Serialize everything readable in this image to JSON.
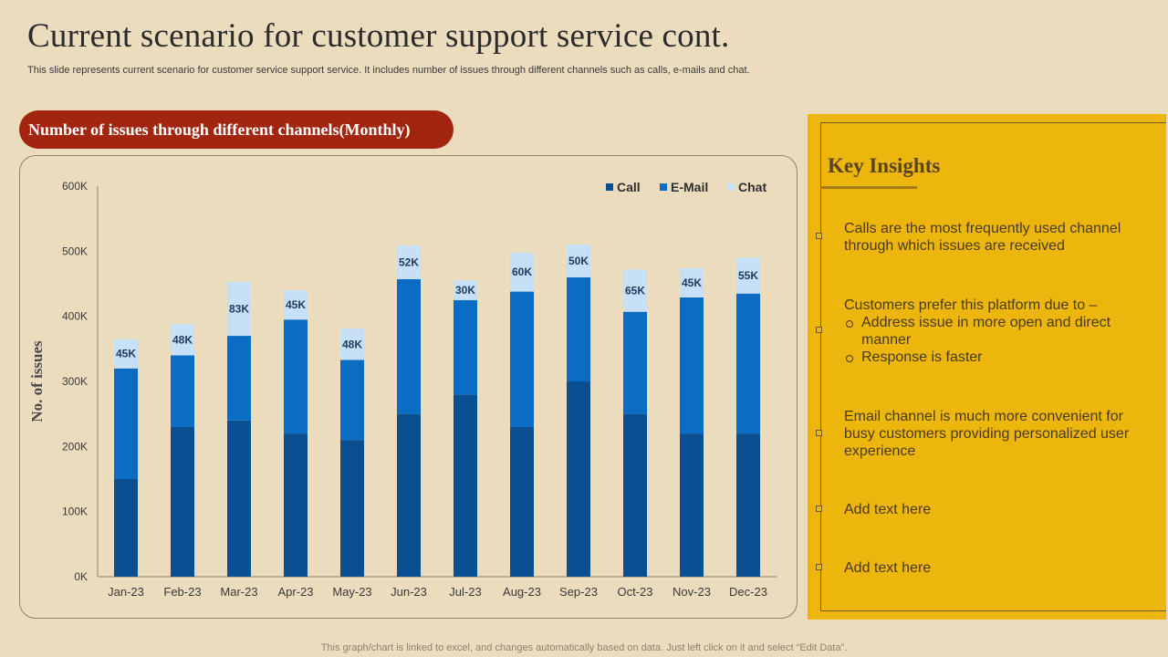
{
  "slide": {
    "title": "Current scenario for customer support service cont.",
    "subtitle": "This slide represents current scenario for customer service support service. It includes number of issues through different channels such as calls, e-mails and chat.",
    "footer": "This graph/chart is linked to excel,  and changes automatically based on data. Just left click on it and select “Edit Data”."
  },
  "chart_banner": "Number of issues through different channels(Monthly)",
  "chart_data": {
    "type": "bar",
    "stacked": true,
    "title": "Number of issues through different channels(Monthly)",
    "xlabel": "",
    "ylabel": "No. of issues",
    "ylim": [
      0,
      600000
    ],
    "yticks": [
      0,
      100000,
      200000,
      300000,
      400000,
      500000,
      600000
    ],
    "ytick_labels": [
      "0K",
      "100K",
      "200K",
      "300K",
      "400K",
      "500K",
      "600K"
    ],
    "grid": false,
    "legend_position": "top-right",
    "categories": [
      "Jan-23",
      "Feb-23",
      "Mar-23",
      "Apr-23",
      "May-23",
      "Jun-23",
      "Jul-23",
      "Aug-23",
      "Sep-23",
      "Oct-23",
      "Nov-23",
      "Dec-23"
    ],
    "series": [
      {
        "name": "Call",
        "color": "#0A4F92",
        "values": [
          150000,
          230000,
          240000,
          220000,
          210000,
          250000,
          280000,
          230000,
          300000,
          250000,
          220000,
          220000
        ]
      },
      {
        "name": "E-Mail",
        "color": "#0A6CC2",
        "values": [
          170000,
          110000,
          130000,
          175000,
          123000,
          207000,
          145000,
          208000,
          160000,
          157000,
          209000,
          215000
        ]
      },
      {
        "name": "Chat",
        "color": "#C5E0F7",
        "values": [
          45000,
          48000,
          83000,
          45000,
          48000,
          52000,
          30000,
          60000,
          50000,
          65000,
          45000,
          55000
        ]
      }
    ],
    "data_labels": [
      "45K",
      "48K",
      "83K",
      "45K",
      "48K",
      "52K",
      "30K",
      "60K",
      "50K",
      "65K",
      "45K",
      "55K"
    ]
  },
  "insights": {
    "title": "Key Insights",
    "items": [
      {
        "text": "Calls are the most frequently  used channel through  which issues are received"
      },
      {
        "text": "Customers prefer this platform due to –",
        "sub": [
          "Address issue in more open and direct manner",
          "Response is faster"
        ]
      },
      {
        "text": "Email channel is much more convenient for busy customers  providing personalized user experience"
      },
      {
        "text": "Add text here"
      },
      {
        "text": "Add text here"
      }
    ]
  },
  "colors": {
    "background": "#EBDCBE",
    "banner": "#A2260F",
    "insights_panel": "#ECB60C"
  }
}
